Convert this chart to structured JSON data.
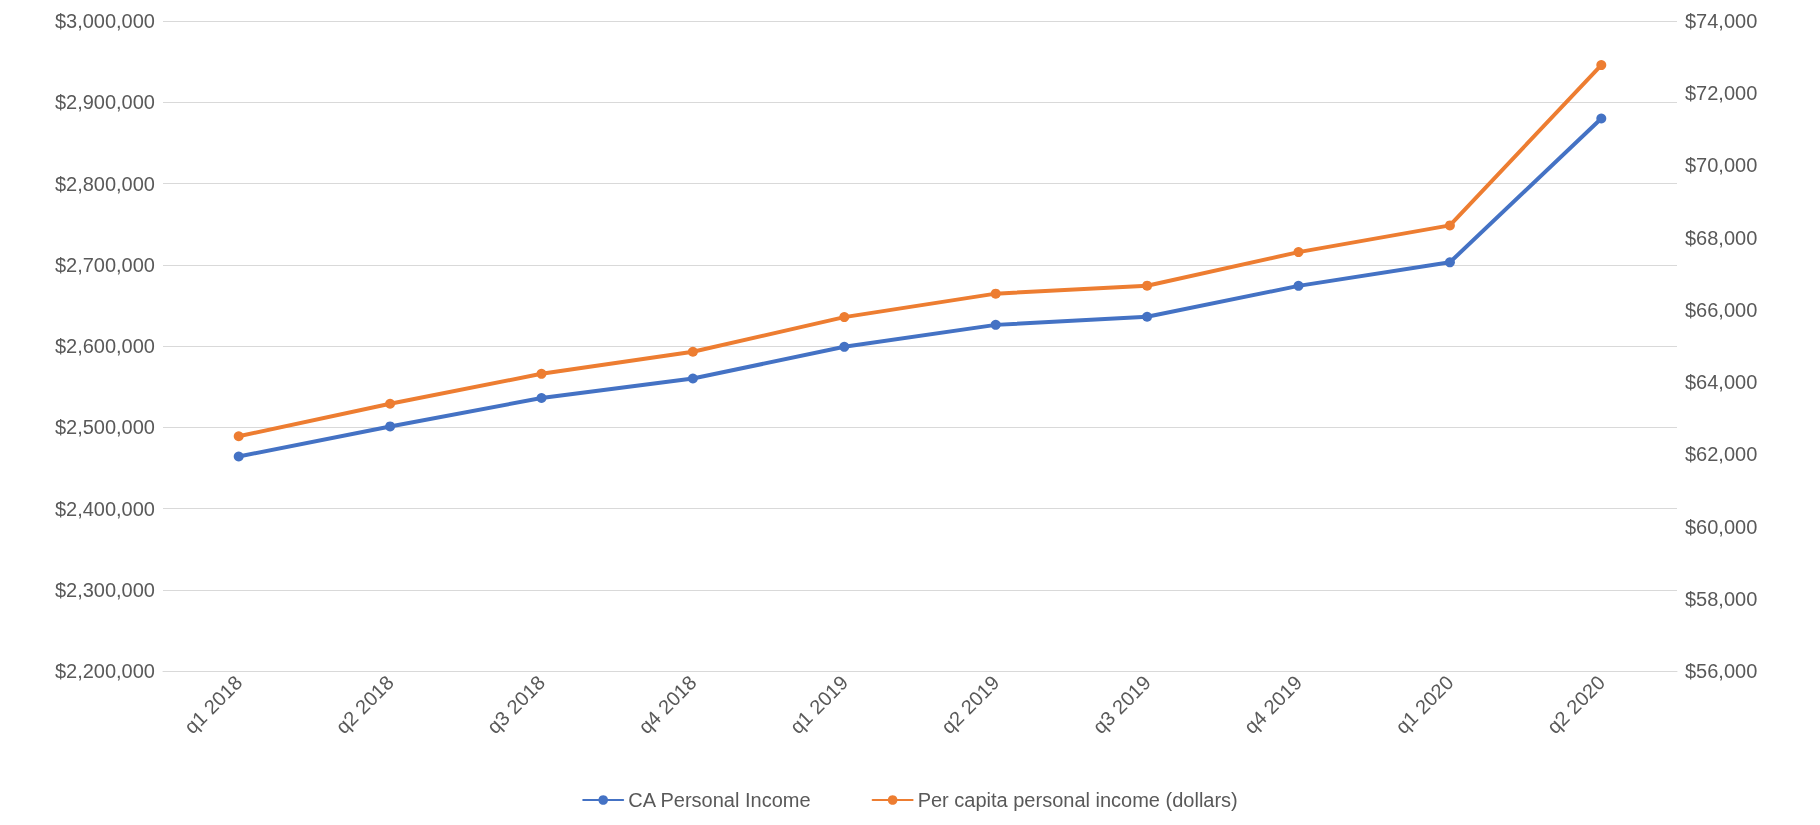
{
  "chart_data": {
    "type": "line",
    "categories": [
      "q1 2018",
      "q2 2018",
      "q3 2018",
      "q4 2018",
      "q1 2019",
      "q2 2019",
      "q3 2019",
      "q4 2019",
      "q1 2020",
      "q2 2020"
    ],
    "series": [
      {
        "name": "CA Personal Income",
        "color": "#4472c4",
        "values": [
          2464000,
          2501000,
          2536000,
          2560000,
          2599000,
          2626000,
          2636000,
          2674000,
          2703000,
          2880000
        ]
      },
      {
        "name": "Per capita personal income (dollars)",
        "color": "#ed7d31",
        "axis": "y2",
        "values": [
          62500,
          63400,
          64230,
          64840,
          65800,
          66450,
          66670,
          67600,
          68340,
          72780
        ]
      }
    ],
    "ylim": [
      2200000,
      3000000
    ],
    "yticks": [
      {
        "value": 2200000,
        "label": "$2,200,000"
      },
      {
        "value": 2300000,
        "label": "$2,300,000"
      },
      {
        "value": 2400000,
        "label": "$2,400,000"
      },
      {
        "value": 2500000,
        "label": "$2,500,000"
      },
      {
        "value": 2600000,
        "label": "$2,600,000"
      },
      {
        "value": 2700000,
        "label": "$2,700,000"
      },
      {
        "value": 2800000,
        "label": "$2,800,000"
      },
      {
        "value": 2900000,
        "label": "$2,900,000"
      },
      {
        "value": 3000000,
        "label": "$3,000,000"
      }
    ],
    "y2lim": [
      56000,
      74000
    ],
    "y2ticks": [
      {
        "value": 56000,
        "label": "$56,000"
      },
      {
        "value": 58000,
        "label": "$58,000"
      },
      {
        "value": 60000,
        "label": "$60,000"
      },
      {
        "value": 62000,
        "label": "$62,000"
      },
      {
        "value": 64000,
        "label": "$64,000"
      },
      {
        "value": 66000,
        "label": "$66,000"
      },
      {
        "value": 68000,
        "label": "$68,000"
      },
      {
        "value": 70000,
        "label": "$70,000"
      },
      {
        "value": 72000,
        "label": "$72,000"
      },
      {
        "value": 74000,
        "label": "$74,000"
      }
    ],
    "grid": "y",
    "legend": "bottom",
    "marker": "circle",
    "line_style": "solid"
  }
}
